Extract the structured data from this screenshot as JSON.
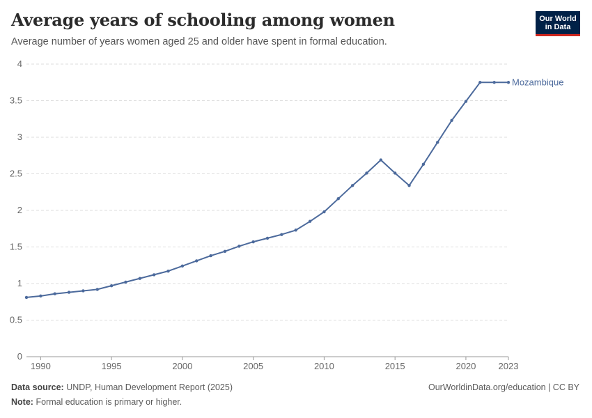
{
  "header": {
    "title": "Average years of schooling among women",
    "subtitle": "Average number of years women aged 25 and older have spent in formal education.",
    "logo_line1": "Our World",
    "logo_line2": "in Data"
  },
  "footer": {
    "source_label": "Data source:",
    "source_text": "UNDP, Human Development Report (2025)",
    "note_label": "Note:",
    "note_text": "Formal education is primary or higher.",
    "url_text": "OurWorldinData.org/education | CC BY"
  },
  "colors": {
    "series": "#4c6a9c",
    "grid": "#dddddd",
    "axis_text": "#666666",
    "logo_bg": "#002147",
    "logo_accent": "#ce261e"
  },
  "chart_data": {
    "type": "line",
    "title": "Average years of schooling among women",
    "xlabel": "",
    "ylabel": "",
    "xlim": [
      1989,
      2023
    ],
    "ylim": [
      0,
      4
    ],
    "grid": true,
    "yticks": [
      0,
      0.5,
      1,
      1.5,
      2,
      2.5,
      3,
      3.5,
      4
    ],
    "ytick_labels": [
      "0",
      "0.5",
      "1",
      "1.5",
      "2",
      "2.5",
      "3",
      "3.5",
      "4"
    ],
    "xticks": [
      1990,
      1995,
      2000,
      2005,
      2010,
      2015,
      2020,
      2023
    ],
    "xtick_labels": [
      "1990",
      "1995",
      "2000",
      "2005",
      "2010",
      "2015",
      "2020",
      "2023"
    ],
    "series": [
      {
        "name": "Mozambique",
        "x": [
          1989,
          1990,
          1991,
          1992,
          1993,
          1994,
          1995,
          1996,
          1997,
          1998,
          1999,
          2000,
          2001,
          2002,
          2003,
          2004,
          2005,
          2006,
          2007,
          2008,
          2009,
          2010,
          2011,
          2012,
          2013,
          2014,
          2015,
          2016,
          2017,
          2018,
          2019,
          2020,
          2021,
          2022,
          2023
        ],
        "values": [
          0.81,
          0.83,
          0.86,
          0.88,
          0.9,
          0.92,
          0.97,
          1.02,
          1.07,
          1.12,
          1.17,
          1.24,
          1.31,
          1.38,
          1.44,
          1.51,
          1.57,
          1.62,
          1.67,
          1.73,
          1.85,
          1.98,
          2.16,
          2.34,
          2.51,
          2.69,
          2.51,
          2.34,
          2.63,
          2.93,
          3.23,
          3.49,
          3.75,
          3.75,
          3.75
        ]
      }
    ]
  }
}
